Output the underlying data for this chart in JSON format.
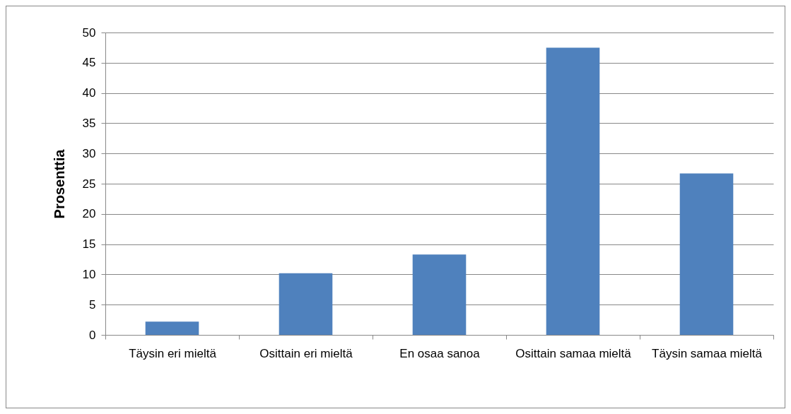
{
  "chart_data": {
    "type": "bar",
    "ylabel": "Prosenttia",
    "categories": [
      "Täysin eri mieltä",
      "Osittain eri mieltä",
      "En osaa sanoa",
      "Osittain samaa mieltä",
      "Täysin samaa mieltä"
    ],
    "values": [
      2.2,
      10.2,
      13.3,
      47.5,
      26.7
    ],
    "color": "#4f81bd",
    "ylim": [
      0,
      50
    ],
    "yticks": [
      0,
      5,
      10,
      15,
      20,
      25,
      30,
      35,
      40,
      45,
      50
    ],
    "grid": "y"
  }
}
